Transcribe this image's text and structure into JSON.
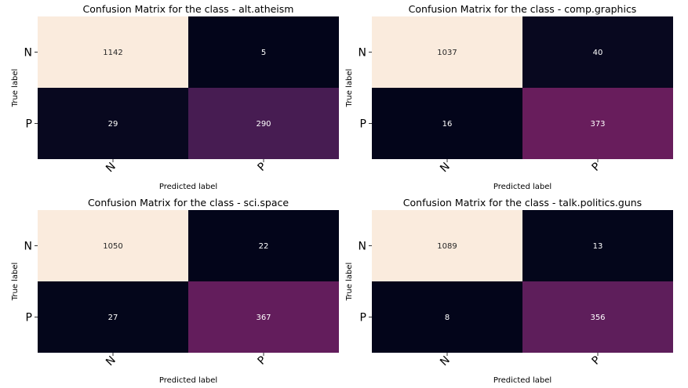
{
  "chart_data": [
    {
      "type": "heatmap",
      "title": "Confusion Matrix for the class - alt.atheism",
      "xlabel": "Predicted label",
      "ylabel": "True label",
      "x_categories": [
        "N",
        "P"
      ],
      "y_categories": [
        "N",
        "P"
      ],
      "values": [
        [
          1142,
          5
        ],
        [
          29,
          290
        ]
      ],
      "colorbar": false,
      "colormap": "rocket"
    },
    {
      "type": "heatmap",
      "title": "Confusion Matrix for the class - comp.graphics",
      "xlabel": "Predicted label",
      "ylabel": "True label",
      "x_categories": [
        "N",
        "P"
      ],
      "y_categories": [
        "N",
        "P"
      ],
      "values": [
        [
          1037,
          40
        ],
        [
          16,
          373
        ]
      ],
      "colorbar": false,
      "colormap": "rocket"
    },
    {
      "type": "heatmap",
      "title": "Confusion Matrix for the class - sci.space",
      "xlabel": "Predicted label",
      "ylabel": "True label",
      "x_categories": [
        "N",
        "P"
      ],
      "y_categories": [
        "N",
        "P"
      ],
      "values": [
        [
          1050,
          22
        ],
        [
          27,
          367
        ]
      ],
      "colorbar": false,
      "colormap": "rocket"
    },
    {
      "type": "heatmap",
      "title": "Confusion Matrix for the class - talk.politics.guns",
      "xlabel": "Predicted label",
      "ylabel": "True label",
      "x_categories": [
        "N",
        "P"
      ],
      "y_categories": [
        "N",
        "P"
      ],
      "values": [
        [
          1089,
          13
        ],
        [
          8,
          356
        ]
      ],
      "colorbar": false,
      "colormap": "rocket"
    }
  ]
}
